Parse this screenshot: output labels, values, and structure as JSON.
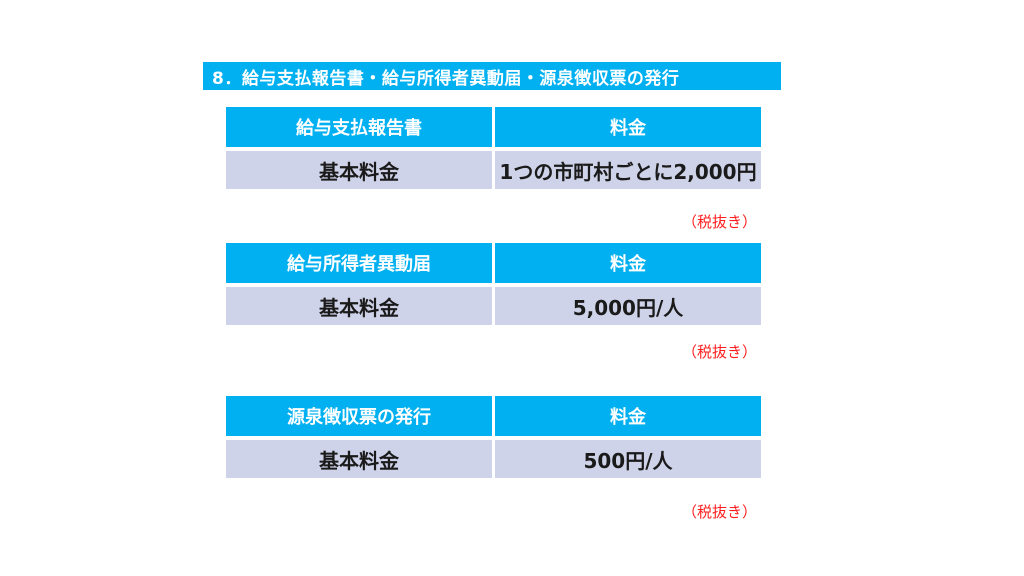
{
  "slide": {
    "title": "8．給与支払報告書・給与所得者異動届・源泉徴収票の発行",
    "tax_note": "（税抜き）"
  },
  "colors": {
    "accent_cyan": "#00B0F0",
    "row_lavender": "#CFD3E9",
    "note_red": "#FF1F1F",
    "header_text": "#FFFFFF",
    "body_text": "#1A1A1A"
  },
  "tables": [
    {
      "name": "給与支払報告書",
      "header": [
        "給与支払報告書",
        "料金"
      ],
      "rows": [
        [
          "基本料金",
          "1つの市町村ごとに2,000円"
        ]
      ]
    },
    {
      "name": "給与所得者異動届",
      "header": [
        "給与所得者異動届",
        "料金"
      ],
      "rows": [
        [
          "基本料金",
          "5,000円/人"
        ]
      ]
    },
    {
      "name": "源泉徴収票の発行",
      "header": [
        "源泉徴収票の発行",
        "料金"
      ],
      "rows": [
        [
          "基本料金",
          "500円/人"
        ]
      ]
    }
  ]
}
